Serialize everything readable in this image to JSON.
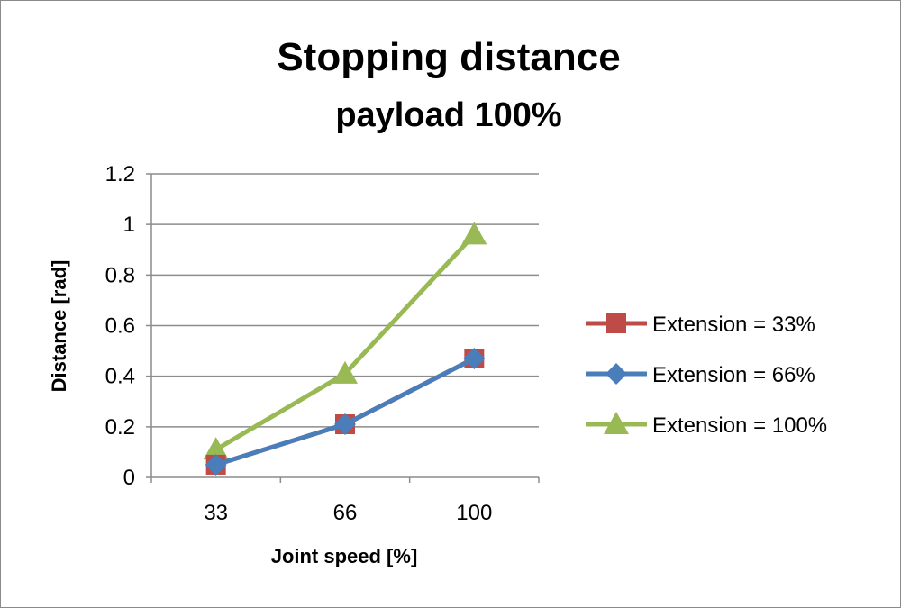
{
  "chart_data": {
    "type": "line",
    "title": "Stopping distance",
    "subtitle": "payload 100%",
    "xlabel": "Joint speed [%]",
    "ylabel": "Distance [rad]",
    "categories": [
      "33",
      "66",
      "100"
    ],
    "ylim": [
      0,
      1.2
    ],
    "yticks": [
      "0",
      "0.2",
      "0.4",
      "0.6",
      "0.8",
      "1",
      "1.2"
    ],
    "grid": "horizontal",
    "legend_position": "right",
    "series": [
      {
        "name": "Extension = 33%",
        "values": [
          0.05,
          0.21,
          0.47
        ],
        "color": "#be4b48",
        "marker": "square"
      },
      {
        "name": "Extension = 66%",
        "values": [
          0.05,
          0.21,
          0.47
        ],
        "color": "#4a7ebb",
        "marker": "diamond"
      },
      {
        "name": "Extension = 100%",
        "values": [
          0.11,
          0.41,
          0.96
        ],
        "color": "#98b954",
        "marker": "triangle"
      }
    ]
  }
}
